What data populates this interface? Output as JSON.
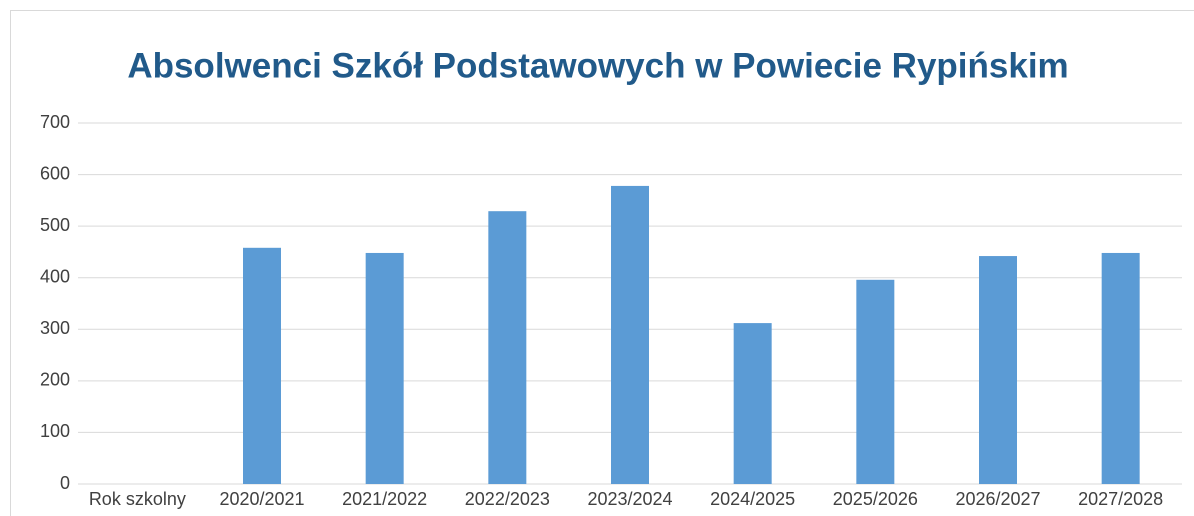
{
  "chart_data": {
    "type": "bar",
    "title": "Absolwenci Szkół Podstawowych w Powiecie Rypińskim",
    "categories": [
      "Rok szkolny",
      "2020/2021",
      "2021/2022",
      "2022/2023",
      "2023/2024",
      "2024/2025",
      "2025/2026",
      "2026/2027",
      "2027/2028"
    ],
    "values": [
      null,
      458,
      448,
      529,
      578,
      312,
      396,
      442,
      448
    ],
    "color": "#5b9bd5",
    "ylim": [
      0,
      700
    ],
    "yticks": [
      0,
      100,
      200,
      300,
      400,
      500,
      600,
      700
    ],
    "grid": true
  }
}
